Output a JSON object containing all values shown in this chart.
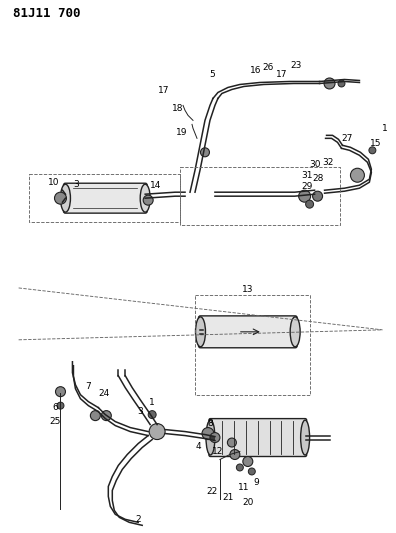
{
  "title": "81J11 700",
  "bg_color": "#ffffff",
  "line_color": "#222222",
  "text_color": "#000000",
  "title_fontsize": 9,
  "label_fontsize": 6.5,
  "figsize": [
    3.96,
    5.33
  ],
  "dpi": 100
}
